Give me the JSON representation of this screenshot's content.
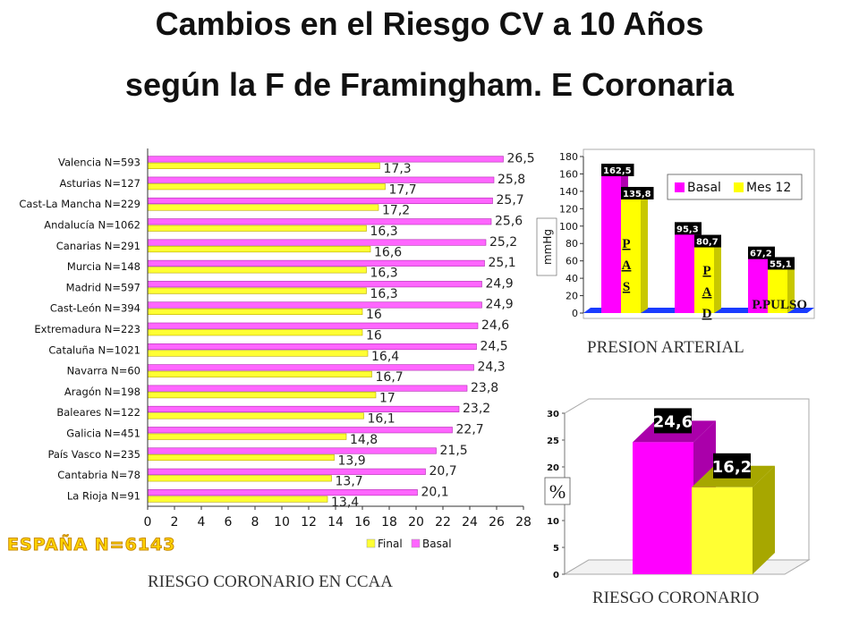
{
  "title_line1": "Cambios en el Riesgo CV a 10 Años",
  "title_line2": "según  la F de Framingham. E Coronaria",
  "spain_label": "ESPAÑA N=6143",
  "chart_data": [
    {
      "type": "bar",
      "orientation": "horizontal",
      "caption": "RIESGO CORONARIO EN CCAA",
      "categories": [
        "Valencia N=593",
        "Asturias N=127",
        "Cast-La Mancha N=229",
        "Andalucía N=1062",
        "Canarias N=291",
        "Murcia N=148",
        "Madrid N=597",
        "Cast-León N=394",
        "Extremadura N=223",
        "Cataluña N=1021",
        "Navarra N=60",
        "Aragón N=198",
        "Baleares N=122",
        "Galicia N=451",
        "País Vasco N=235",
        "Cantabria N=78",
        "La Rioja N=91"
      ],
      "series": [
        {
          "name": "Final",
          "color": "#ffff33",
          "values": [
            17.3,
            17.7,
            17.2,
            16.3,
            16.6,
            16.3,
            16.3,
            16,
            16,
            16.4,
            16.7,
            17,
            16.1,
            14.8,
            13.9,
            13.7,
            13.4
          ],
          "labels": [
            "17,3",
            "17,7",
            "17,2",
            "16,3",
            "16,6",
            "16,3",
            "16,3",
            "16",
            "16",
            "16,4",
            "16,7",
            "17",
            "16,1",
            "14,8",
            "13,9",
            "13,7",
            "13,4"
          ]
        },
        {
          "name": "Basal",
          "color": "#ff66ff",
          "values": [
            26.5,
            25.8,
            25.7,
            25.6,
            25.2,
            25.1,
            24.9,
            24.9,
            24.6,
            24.5,
            24.3,
            23.8,
            23.2,
            22.7,
            21.5,
            20.7,
            20.1
          ],
          "labels": [
            "26,5",
            "25,8",
            "25,7",
            "25,6",
            "25,2",
            "25,1",
            "24,9",
            "24,9",
            "24,6",
            "24,5",
            "24,3",
            "23,8",
            "23,2",
            "22,7",
            "21,5",
            "20,7",
            "20,1"
          ]
        }
      ],
      "xlim": [
        0,
        28
      ],
      "xticks": [
        "0",
        "2",
        "4",
        "6",
        "8",
        "10",
        "12",
        "14",
        "16",
        "18",
        "20",
        "22",
        "24",
        "26",
        "28"
      ],
      "legend_position": "bottom-right"
    },
    {
      "type": "bar",
      "caption": "PRESION ARTERIAL",
      "ylabel": "mmHg",
      "categories": [
        "PAS",
        "PAD",
        "P.PULSO"
      ],
      "category_text": [
        "P A S",
        "P A D",
        "P.PULSO"
      ],
      "series": [
        {
          "name": "Basal",
          "color": "#ff00ff",
          "values": [
            162.5,
            95.3,
            67.2
          ],
          "labels": [
            "162,5",
            "95,3",
            "67,2"
          ]
        },
        {
          "name": "Mes 12",
          "color": "#ffff00",
          "values": [
            135.8,
            80.7,
            55.1
          ],
          "labels": [
            "135,8",
            "80,7",
            "55,1"
          ]
        }
      ],
      "ylim": [
        0,
        180
      ],
      "yticks": [
        "0",
        "20",
        "40",
        "60",
        "80",
        "100",
        "120",
        "140",
        "160",
        "180"
      ],
      "legend_position": "top-right"
    },
    {
      "type": "bar",
      "caption": "RIESGO CORONARIO",
      "ylabel": "%",
      "series": [
        {
          "name": "Basal",
          "color": "#ff00ff",
          "values": [
            24.6
          ],
          "labels": [
            "24,6"
          ]
        },
        {
          "name": "Final",
          "color": "#ffff33",
          "values": [
            16.2
          ],
          "labels": [
            "16,2"
          ]
        }
      ],
      "ylim": [
        0,
        30
      ],
      "yticks": [
        "0",
        "5",
        "10",
        "15",
        "20",
        "25",
        "30"
      ]
    }
  ]
}
